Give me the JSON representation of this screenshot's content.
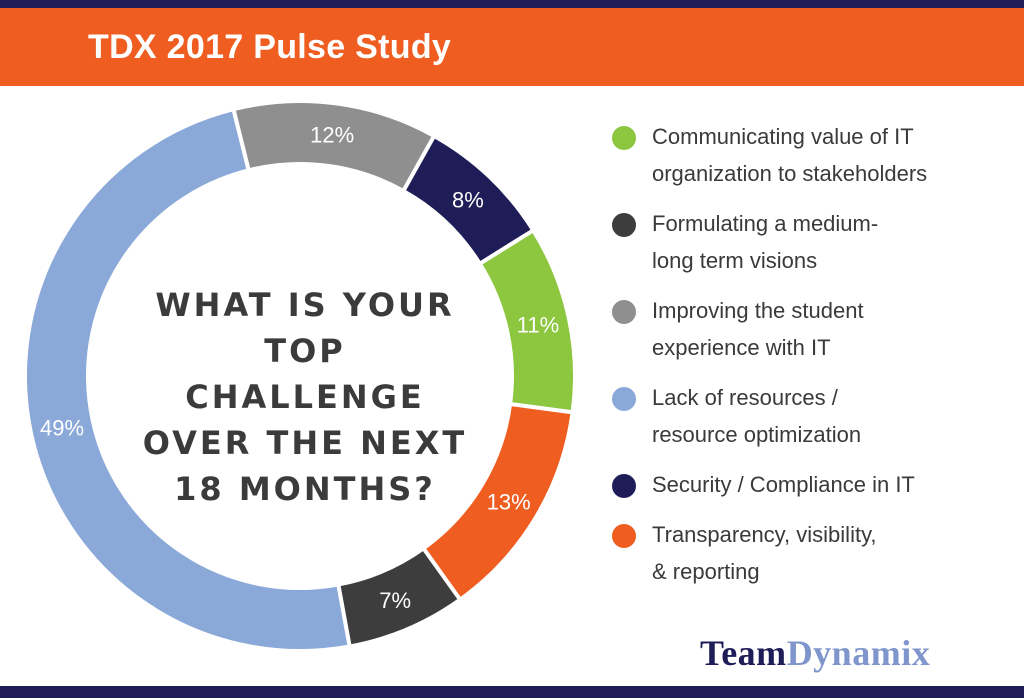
{
  "header": {
    "title": "TDX 2017 Pulse Study"
  },
  "question_lines": [
    "WHAT IS YOUR",
    "TOP CHALLENGE",
    "OVER THE NEXT",
    "18 MONTHS?"
  ],
  "logo": {
    "part1": "Team",
    "part2": "Dynamix"
  },
  "colors": {
    "banner": "#ef5d21",
    "stripe": "#1f1d57",
    "green": "#8dc63f",
    "dark_gray": "#3d3d3d",
    "light_gray": "#8f8f8f",
    "light_blue": "#8aa8d8",
    "navy": "#1f1d57",
    "orange": "#ef5d21"
  },
  "chart_data": {
    "type": "pie",
    "donut": true,
    "title": "",
    "slices": [
      {
        "label": "Communicating value of IT organization to stakeholders",
        "value": 11,
        "value_label": "11%",
        "color": "#8dc63f"
      },
      {
        "label": "Transparency, visibility, & reporting",
        "value": 13,
        "value_label": "13%",
        "color": "#ef5d21"
      },
      {
        "label": "Formulating a medium-long term visions",
        "value": 7,
        "value_label": "7%",
        "color": "#3d3d3d"
      },
      {
        "label": "Lack of resources / resource optimization",
        "value": 49,
        "value_label": "49%",
        "color": "#8aa8d8"
      },
      {
        "label": "Improving the student experience with IT",
        "value": 12,
        "value_label": "12%",
        "color": "#8f8f8f"
      },
      {
        "label": "Security / Compliance in IT",
        "value": 8,
        "value_label": "8%",
        "color": "#1f1d57"
      }
    ],
    "legend": [
      {
        "lines": [
          "Communicating value of IT",
          "organization to stakeholders"
        ],
        "color": "#8dc63f"
      },
      {
        "lines": [
          "Formulating a medium-",
          "long term visions"
        ],
        "color": "#3d3d3d"
      },
      {
        "lines": [
          "Improving the student",
          "experience with IT"
        ],
        "color": "#8f8f8f"
      },
      {
        "lines": [
          "Lack of resources /",
          "resource optimization"
        ],
        "color": "#8aa8d8"
      },
      {
        "lines": [
          "Security / Compliance in IT"
        ],
        "color": "#1f1d57"
      },
      {
        "lines": [
          "Transparency, visibility,",
          "& reporting"
        ],
        "color": "#ef5d21"
      }
    ],
    "legend_position": "right"
  }
}
